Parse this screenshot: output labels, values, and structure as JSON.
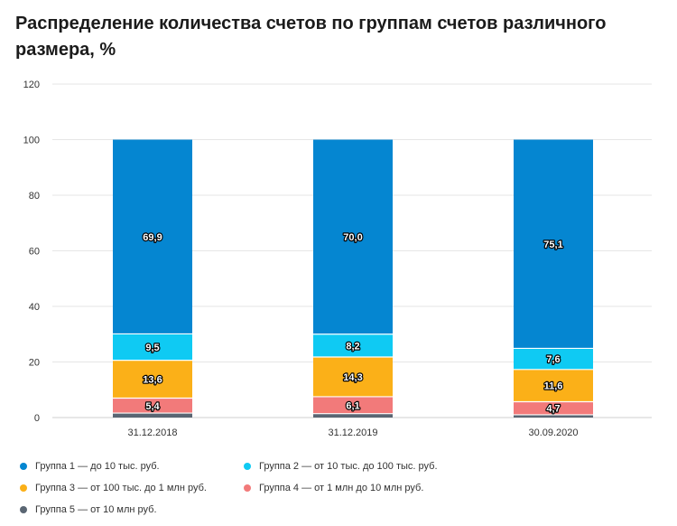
{
  "title": "Распределение количества счетов по группам счетов различного размера, %",
  "chart_data": {
    "type": "bar",
    "stacked": true,
    "categories": [
      "31.12.2018",
      "31.12.2019",
      "30.09.2020"
    ],
    "ylim": [
      0,
      120
    ],
    "yticks": [
      0,
      20,
      40,
      60,
      80,
      100,
      120
    ],
    "grid": true,
    "legend_position": "bottom",
    "series": [
      {
        "name": "Группа 5 — от 10 млн руб.",
        "color": "#5a6673",
        "values": [
          1.6,
          1.4,
          1.0
        ],
        "labels": [
          "",
          "",
          ""
        ]
      },
      {
        "name": "Группа 4 — от 1 млн до 10 млн руб.",
        "color": "#f27a7a",
        "values": [
          5.4,
          6.1,
          4.7
        ],
        "labels": [
          "5,4",
          "6,1",
          "4,7"
        ]
      },
      {
        "name": "Группа 3 — от 100 тыс. до 1 млн руб.",
        "color": "#fbb018",
        "values": [
          13.6,
          14.3,
          11.6
        ],
        "labels": [
          "13,6",
          "14,3",
          "11,6"
        ]
      },
      {
        "name": "Группа 2 — от 10 тыс. до 100 тыс. руб.",
        "color": "#0fcaf3",
        "values": [
          9.5,
          8.2,
          7.6
        ],
        "labels": [
          "9,5",
          "8,2",
          "7,6"
        ]
      },
      {
        "name": "Группа 1 — до 10 тыс. руб.",
        "color": "#0586d1",
        "values": [
          69.9,
          70.0,
          75.1
        ],
        "labels": [
          "69,9",
          "70,0",
          "75,1"
        ]
      }
    ],
    "legend_order": [
      4,
      3,
      2,
      1,
      0
    ]
  }
}
